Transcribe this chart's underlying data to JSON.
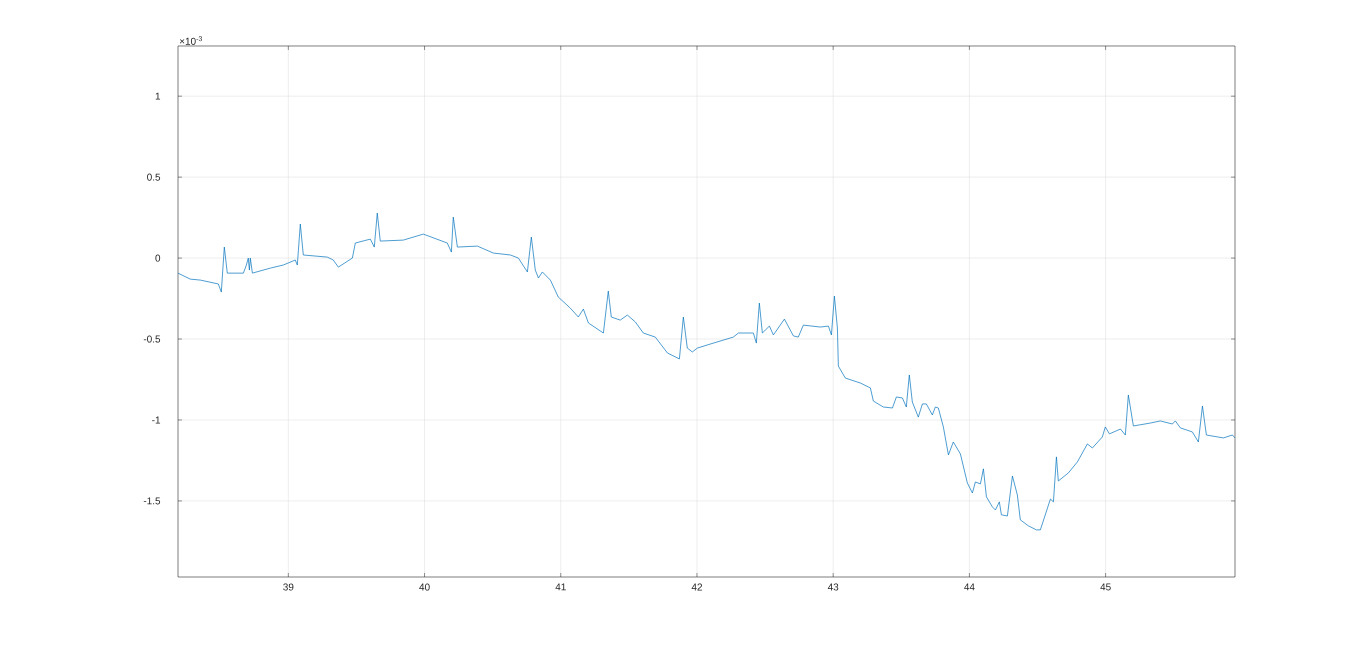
{
  "chart_data": {
    "type": "line",
    "color": "#0072bd",
    "grid": true,
    "xlim": [
      38.19,
      45.95
    ],
    "ylim": [
      -1.97,
      1.31
    ],
    "xticks": [
      39,
      40,
      41,
      42,
      43,
      44,
      45
    ],
    "yticks": [
      -1.5,
      -1,
      -0.5,
      0,
      0.5,
      1
    ],
    "annotations": [
      "×10$^{-3}$"
    ],
    "x": [
      38.19,
      38.28,
      38.354,
      38.486,
      38.508,
      38.53,
      38.552,
      38.67,
      38.692,
      38.706,
      38.714,
      38.721,
      38.736,
      38.868,
      38.963,
      39.051,
      39.066,
      39.088,
      39.11,
      39.286,
      39.33,
      39.367,
      39.47,
      39.492,
      39.602,
      39.631,
      39.653,
      39.675,
      39.844,
      39.991,
      40.167,
      40.197,
      40.211,
      40.241,
      40.388,
      40.505,
      40.63,
      40.689,
      40.755,
      40.784,
      40.813,
      40.836,
      40.865,
      40.924,
      40.982,
      41.07,
      41.129,
      41.166,
      41.203,
      41.313,
      41.349,
      41.371,
      41.437,
      41.489,
      41.548,
      41.606,
      41.694,
      41.783,
      41.871,
      41.9,
      41.929,
      41.966,
      42.003,
      42.098,
      42.267,
      42.304,
      42.414,
      42.436,
      42.458,
      42.48,
      42.532,
      42.561,
      42.642,
      42.708,
      42.744,
      42.781,
      42.906,
      42.965,
      42.987,
      43.009,
      43.031,
      43.038,
      43.089,
      43.2,
      43.273,
      43.295,
      43.368,
      43.435,
      43.464,
      43.508,
      43.537,
      43.559,
      43.581,
      43.625,
      43.655,
      43.684,
      43.728,
      43.75,
      43.772,
      43.809,
      43.846,
      43.882,
      43.934,
      43.985,
      44.022,
      44.044,
      44.081,
      44.103,
      44.125,
      44.169,
      44.191,
      44.22,
      44.235,
      44.279,
      44.316,
      44.352,
      44.374,
      44.433,
      44.492,
      44.521,
      44.595,
      44.617,
      44.639,
      44.653,
      44.727,
      44.793,
      44.866,
      44.903,
      44.976,
      44.998,
      45.028,
      45.109,
      45.145,
      45.167,
      45.204,
      45.329,
      45.402,
      45.49,
      45.512,
      45.549,
      45.637,
      45.681,
      45.711,
      45.74,
      45.865,
      45.931,
      45.95
    ],
    "values": [
      -0.093,
      -0.13,
      -0.136,
      -0.16,
      -0.21,
      0.068,
      -0.093,
      -0.093,
      -0.043,
      0,
      -0.074,
      0,
      -0.093,
      -0.062,
      -0.043,
      -0.012,
      -0.043,
      0.21,
      0.019,
      0.006,
      -0.012,
      -0.056,
      0,
      0.093,
      0.117,
      0.068,
      0.278,
      0.105,
      0.111,
      0.148,
      0.093,
      0.037,
      0.253,
      0.068,
      0.074,
      0.031,
      0.019,
      0,
      -0.086,
      0.13,
      -0.074,
      -0.123,
      -0.086,
      -0.136,
      -0.241,
      -0.309,
      -0.364,
      -0.315,
      -0.401,
      -0.463,
      -0.204,
      -0.364,
      -0.383,
      -0.352,
      -0.395,
      -0.463,
      -0.488,
      -0.586,
      -0.623,
      -0.364,
      -0.556,
      -0.58,
      -0.556,
      -0.531,
      -0.488,
      -0.463,
      -0.463,
      -0.525,
      -0.278,
      -0.463,
      -0.42,
      -0.475,
      -0.377,
      -0.481,
      -0.488,
      -0.414,
      -0.426,
      -0.42,
      -0.475,
      -0.235,
      -0.432,
      -0.667,
      -0.741,
      -0.772,
      -0.802,
      -0.883,
      -0.92,
      -0.926,
      -0.858,
      -0.864,
      -0.92,
      -0.722,
      -0.889,
      -0.982,
      -0.901,
      -0.901,
      -0.969,
      -0.92,
      -0.926,
      -1.043,
      -1.216,
      -1.136,
      -1.21,
      -1.389,
      -1.451,
      -1.383,
      -1.395,
      -1.302,
      -1.475,
      -1.537,
      -1.556,
      -1.506,
      -1.586,
      -1.593,
      -1.346,
      -1.463,
      -1.617,
      -1.654,
      -1.679,
      -1.679,
      -1.488,
      -1.506,
      -1.228,
      -1.377,
      -1.327,
      -1.259,
      -1.148,
      -1.173,
      -1.105,
      -1.043,
      -1.086,
      -1.056,
      -1.093,
      -0.846,
      -1.037,
      -1.019,
      -1.006,
      -1.025,
      -1.006,
      -1.049,
      -1.074,
      -1.136,
      -0.914,
      -1.093,
      -1.111,
      -1.093,
      -1.111
    ]
  }
}
